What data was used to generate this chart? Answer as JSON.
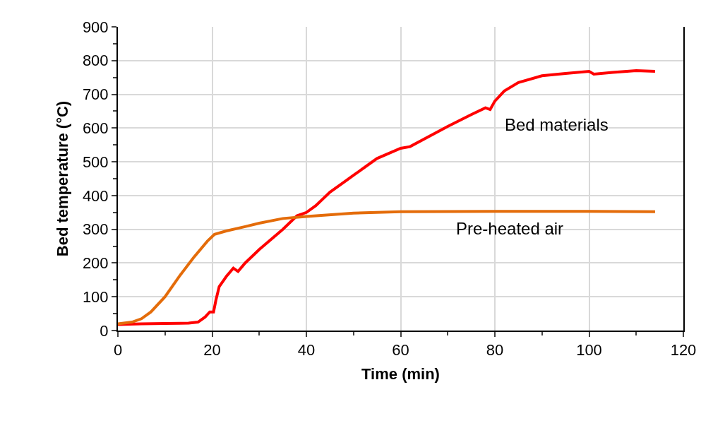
{
  "chart_data": {
    "type": "line",
    "xlabel": "Time (min)",
    "ylabel": "Bed temperature (°C)",
    "xlim": [
      0,
      120
    ],
    "xticks": [
      0,
      20,
      40,
      60,
      80,
      100,
      120
    ],
    "ylim": [
      0,
      900
    ],
    "yticks": [
      0,
      100,
      200,
      300,
      400,
      500,
      600,
      700,
      800,
      900
    ],
    "grid": true,
    "legend": false,
    "marker": "none",
    "line_style": "solid",
    "series": [
      {
        "name": "Bed materials",
        "color": "#ff0000",
        "x": [
          0,
          5,
          10,
          15,
          17,
          18.5,
          19.5,
          20.3,
          20.8,
          21.5,
          22.5,
          23,
          24.5,
          25.5,
          27,
          30,
          35,
          38,
          40,
          42,
          45,
          50,
          55,
          60,
          62,
          70,
          75,
          78,
          79,
          80,
          82,
          85,
          90,
          95,
          100,
          101,
          105,
          110,
          114
        ],
        "values": [
          18,
          20,
          21,
          22,
          25,
          40,
          55,
          55,
          90,
          130,
          150,
          160,
          185,
          175,
          200,
          240,
          300,
          340,
          350,
          370,
          410,
          460,
          510,
          540,
          545,
          605,
          640,
          660,
          655,
          680,
          710,
          735,
          755,
          762,
          768,
          760,
          765,
          770,
          768
        ]
      },
      {
        "name": "Pre-heated air",
        "color": "#e46c0a",
        "x": [
          0,
          3,
          5,
          7,
          10,
          13,
          16,
          19,
          20.5,
          23,
          27,
          30,
          35,
          40,
          50,
          60,
          80,
          100,
          114
        ],
        "values": [
          20,
          25,
          35,
          55,
          100,
          160,
          215,
          265,
          285,
          295,
          308,
          318,
          332,
          338,
          348,
          352,
          353,
          353,
          352
        ]
      }
    ]
  }
}
